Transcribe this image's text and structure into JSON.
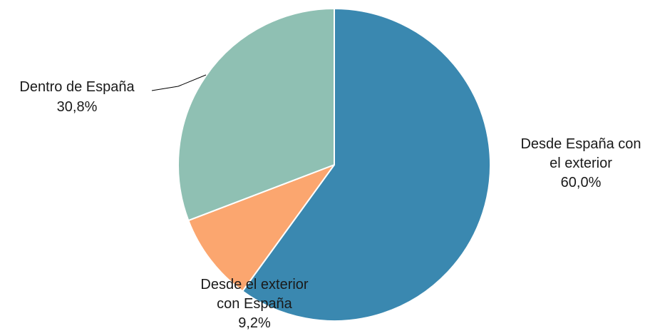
{
  "chart_data": {
    "type": "pie",
    "slices": [
      {
        "label_lines": [
          "Desde España con",
          "el exterior"
        ],
        "value": 60.0,
        "value_label": "60,0%",
        "color": "#3a88b0"
      },
      {
        "label_lines": [
          "Desde el exterior",
          "con España"
        ],
        "value": 9.2,
        "value_label": "9,2%",
        "color": "#fba66f"
      },
      {
        "label_lines": [
          "Dentro de España"
        ],
        "value": 30.8,
        "value_label": "30,8%",
        "color": "#8fc0b3"
      }
    ],
    "start_angle": "12 o'clock",
    "direction": "clockwise",
    "legend": "none"
  }
}
